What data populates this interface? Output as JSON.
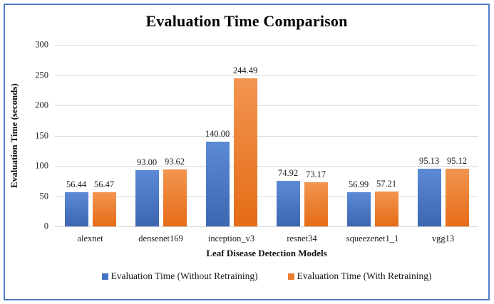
{
  "frame": {
    "border_color": "#4f7dc9"
  },
  "chart_data": {
    "type": "bar",
    "title": "Evaluation Time Comparison",
    "xlabel": "Leaf Disease Detection Models",
    "ylabel": "Evaluation Time (seconds)",
    "categories": [
      "alexnet",
      "densenet169",
      "inception_v3",
      "resnet34",
      "squeezenet1_1",
      "vgg13"
    ],
    "series": [
      {
        "name": "Evaluation Time (Without Retraining)",
        "color": "#4472c4",
        "gradient_top": "#5b8ad6",
        "gradient_bottom": "#3c66b0",
        "values": [
          56.44,
          93.0,
          140.0,
          74.92,
          56.99,
          95.13
        ]
      },
      {
        "name": "Evaluation Time (With Retraining)",
        "color": "#ed7d31",
        "gradient_top": "#f29550",
        "gradient_bottom": "#e56c17",
        "values": [
          56.47,
          93.62,
          244.49,
          73.17,
          57.21,
          95.12
        ]
      }
    ],
    "ylim": [
      0,
      300
    ],
    "yticks": [
      0,
      50,
      100,
      150,
      200,
      250,
      300
    ],
    "grid": true,
    "legend_position": "bottom",
    "value_label_decimals": 2
  }
}
